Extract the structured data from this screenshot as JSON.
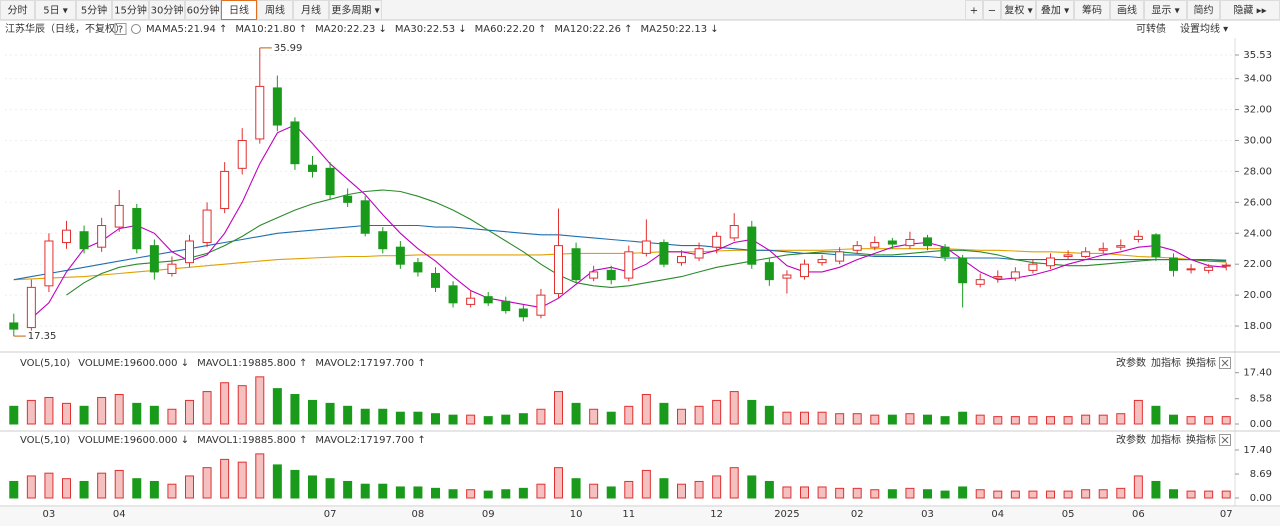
{
  "toolbar": {
    "left": [
      "分时",
      "5日 ▾",
      "5分钟",
      "15分钟",
      "30分钟",
      "60分钟",
      "日线",
      "周线",
      "月线",
      "更多周期 ▾"
    ],
    "active": 6,
    "right": [
      "+",
      "−",
      "复权 ▾",
      "叠加 ▾",
      "筹码",
      "画线",
      "显示 ▾",
      "简约",
      "隐藏 ▸▸"
    ]
  },
  "info": {
    "stock": "江苏华辰（日线，不复权）",
    "help": "?",
    "ma_label": "MA",
    "ma_items": [
      {
        "text": "MA5:21.94 ↑",
        "color": "#333333"
      },
      {
        "text": "MA10:21.80 ↑",
        "color": "#c000c0"
      },
      {
        "text": "MA20:22.23 ↓",
        "color": "#999999"
      },
      {
        "text": "MA30:22.53 ↓",
        "color": "#8b2222"
      },
      {
        "text": "MA60:22.20 ↑",
        "color": "#2a8a2a"
      },
      {
        "text": "MA120:22.26 ↑",
        "color": "#1f6fb0"
      },
      {
        "text": "MA250:22.13 ↓",
        "color": "#e0a000"
      }
    ],
    "right": [
      "可转债",
      "设置均线 ▾"
    ]
  },
  "panel_tools": [
    "改参数",
    "加指标",
    "换指标"
  ],
  "chart_data": [
    {
      "type": "candlestick",
      "up_color": "#e03030",
      "down_color": "#1a9a1a",
      "grid": true,
      "ylim": [
        16.45,
        36.5
      ],
      "yticks": [
        {
          "value": 18,
          "label": "18.00"
        },
        {
          "value": 20,
          "label": "20.00"
        },
        {
          "value": 22,
          "label": "22.00"
        },
        {
          "value": 24,
          "label": "24.00"
        },
        {
          "value": 26,
          "label": "26.00"
        },
        {
          "value": 28,
          "label": "28.00"
        },
        {
          "value": 30,
          "label": "30.00"
        },
        {
          "value": 32,
          "label": "32.00"
        },
        {
          "value": 34,
          "label": "34.00"
        },
        {
          "value": 35.53,
          "label": "35.53"
        }
      ],
      "categories": [
        null,
        null,
        "03",
        null,
        null,
        null,
        "04",
        null,
        null,
        null,
        null,
        null,
        null,
        null,
        null,
        null,
        null,
        null,
        "07",
        null,
        null,
        null,
        null,
        "08",
        null,
        null,
        null,
        "09",
        null,
        null,
        null,
        null,
        "10",
        null,
        null,
        "11",
        null,
        null,
        null,
        null,
        "12",
        null,
        null,
        null,
        "2025",
        null,
        null,
        null,
        "02",
        null,
        null,
        null,
        "03",
        null,
        null,
        null,
        "04",
        null,
        null,
        null,
        "05",
        null,
        null,
        null,
        "06",
        null,
        null,
        null,
        null,
        "07"
      ],
      "open": [
        18.2,
        17.9,
        20.6,
        23.4,
        24.1,
        23.1,
        24.4,
        25.6,
        23.2,
        21.4,
        22.1,
        23.4,
        25.6,
        28.2,
        30.1,
        33.4,
        31.2,
        28.4,
        28.2,
        26.4,
        26.1,
        24.1,
        23.1,
        22.1,
        21.4,
        20.6,
        19.4,
        19.9,
        19.6,
        19.1,
        18.7,
        20.1,
        23.0,
        21.1,
        21.6,
        21.1,
        22.7,
        23.4,
        22.1,
        22.4,
        23.1,
        23.7,
        24.4,
        22.1,
        21.1,
        21.2,
        22.1,
        22.2,
        22.9,
        23.1,
        23.5,
        23.2,
        23.7,
        23.1,
        22.4,
        20.7,
        21.1,
        21.1,
        21.6,
        21.9,
        22.5,
        22.5,
        22.9,
        23.1,
        23.6,
        23.9,
        22.4,
        21.7,
        21.6,
        21.9
      ],
      "high": [
        18.8,
        21.0,
        24.0,
        24.8,
        24.5,
        25.0,
        26.8,
        25.9,
        23.6,
        22.5,
        23.9,
        26.0,
        28.6,
        30.8,
        35.99,
        34.2,
        31.5,
        29.0,
        28.6,
        26.9,
        26.4,
        24.4,
        23.5,
        22.4,
        21.8,
        20.9,
        20.3,
        20.2,
        19.9,
        19.4,
        20.4,
        25.6,
        23.4,
        21.9,
        21.9,
        23.2,
        24.9,
        23.6,
        22.9,
        23.4,
        24.1,
        25.3,
        24.8,
        22.4,
        21.6,
        22.3,
        22.6,
        23.1,
        23.5,
        23.8,
        23.7,
        24.1,
        23.9,
        23.3,
        22.6,
        21.4,
        21.6,
        21.8,
        22.3,
        22.7,
        22.9,
        23.1,
        23.4,
        23.6,
        24.2,
        24.0,
        22.7,
        22.0,
        22.0,
        22.1
      ],
      "low": [
        17.35,
        17.7,
        20.2,
        23.0,
        22.7,
        22.8,
        24.1,
        22.7,
        21.0,
        21.2,
        21.8,
        23.1,
        25.3,
        27.8,
        29.8,
        30.6,
        28.1,
        27.6,
        26.2,
        25.7,
        23.8,
        22.7,
        21.7,
        21.2,
        20.2,
        19.2,
        19.2,
        19.3,
        18.8,
        18.3,
        18.5,
        19.8,
        20.8,
        20.9,
        20.7,
        20.9,
        22.5,
        21.8,
        21.9,
        22.2,
        22.7,
        23.5,
        21.7,
        20.6,
        20.1,
        21.0,
        21.9,
        22.0,
        22.7,
        22.9,
        23.0,
        23.0,
        22.9,
        22.2,
        19.2,
        20.5,
        20.8,
        20.9,
        21.4,
        21.7,
        22.3,
        22.4,
        22.7,
        22.9,
        23.4,
        22.2,
        21.2,
        21.4,
        21.4,
        21.6
      ],
      "close": [
        17.8,
        20.5,
        23.5,
        24.2,
        23.0,
        24.5,
        25.8,
        23.0,
        21.5,
        22.0,
        23.5,
        25.5,
        28.0,
        30.0,
        33.5,
        31.0,
        28.5,
        28.0,
        26.5,
        26.0,
        24.0,
        23.0,
        22.0,
        21.5,
        20.5,
        19.5,
        19.8,
        19.5,
        19.0,
        18.6,
        20.0,
        23.2,
        21.0,
        21.5,
        21.0,
        22.8,
        23.5,
        22.0,
        22.5,
        23.0,
        23.8,
        24.5,
        22.0,
        21.0,
        21.3,
        22.0,
        22.3,
        22.8,
        23.2,
        23.4,
        23.3,
        23.6,
        23.2,
        22.5,
        20.8,
        21.0,
        21.2,
        21.5,
        22.0,
        22.4,
        22.6,
        22.8,
        23.0,
        23.2,
        23.8,
        22.5,
        21.6,
        21.7,
        21.8,
        21.94
      ],
      "series": [
        {
          "color": "#e0a000",
          "values": [
            21.0,
            21.05,
            21.1,
            21.15,
            21.2,
            21.3,
            21.4,
            21.5,
            21.6,
            21.7,
            21.8,
            21.9,
            22.0,
            22.1,
            22.2,
            22.3,
            22.35,
            22.4,
            22.45,
            22.5,
            22.5,
            22.55,
            22.55,
            22.6,
            22.6,
            22.6,
            22.6,
            22.6,
            22.6,
            22.6,
            22.6,
            22.65,
            22.7,
            22.7,
            22.7,
            22.7,
            22.75,
            22.8,
            22.8,
            22.8,
            22.85,
            22.9,
            22.9,
            22.9,
            22.9,
            22.9,
            22.9,
            22.95,
            23.0,
            23.0,
            23.0,
            23.0,
            23.0,
            23.0,
            22.95,
            22.9,
            22.9,
            22.85,
            22.8,
            22.8,
            22.75,
            22.7,
            22.7,
            22.6,
            22.5,
            22.45,
            22.4,
            22.3,
            22.2,
            22.13
          ]
        },
        {
          "color": "#1f6fb0",
          "values": [
            21.0,
            21.2,
            21.4,
            21.6,
            21.8,
            22.0,
            22.2,
            22.4,
            22.6,
            22.8,
            23.0,
            23.2,
            23.4,
            23.6,
            23.8,
            24.0,
            24.1,
            24.2,
            24.3,
            24.4,
            24.5,
            24.5,
            24.5,
            24.5,
            24.4,
            24.4,
            24.3,
            24.2,
            24.1,
            24.0,
            23.9,
            23.9,
            23.8,
            23.7,
            23.6,
            23.5,
            23.4,
            23.3,
            23.2,
            23.2,
            23.1,
            23.0,
            22.9,
            22.9,
            22.8,
            22.7,
            22.7,
            22.6,
            22.6,
            22.5,
            22.5,
            22.5,
            22.5,
            22.4,
            22.4,
            22.4,
            22.4,
            22.3,
            22.3,
            22.3,
            22.3,
            22.3,
            22.3,
            22.3,
            22.3,
            22.3,
            22.3,
            22.3,
            22.3,
            22.26
          ]
        },
        {
          "color": "#2a8a2a",
          "values": [
            null,
            null,
            null,
            20.0,
            20.8,
            21.4,
            21.8,
            22.0,
            22.1,
            22.2,
            22.4,
            22.7,
            23.2,
            23.8,
            24.5,
            25.0,
            25.5,
            25.9,
            26.2,
            26.5,
            26.7,
            26.8,
            26.7,
            26.4,
            26.0,
            25.5,
            24.9,
            24.2,
            23.5,
            22.8,
            22.0,
            21.3,
            20.8,
            20.6,
            20.5,
            20.6,
            20.8,
            21.0,
            21.2,
            21.5,
            21.8,
            22.0,
            22.2,
            22.4,
            22.6,
            22.7,
            22.8,
            22.8,
            22.7,
            22.6,
            22.6,
            22.7,
            22.8,
            22.9,
            22.9,
            22.8,
            22.6,
            22.3,
            22.1,
            22.0,
            21.9,
            21.9,
            22.0,
            22.1,
            22.2,
            22.3,
            22.3,
            22.3,
            22.2,
            22.2
          ]
        },
        {
          "color": "#c000c0",
          "values": [
            null,
            18.5,
            19.5,
            21.5,
            23.0,
            23.5,
            24.3,
            24.5,
            24.0,
            22.8,
            22.2,
            22.6,
            24.0,
            26.0,
            28.5,
            30.5,
            31.0,
            29.8,
            28.5,
            27.5,
            26.5,
            25.2,
            24.0,
            23.0,
            22.2,
            21.2,
            20.3,
            19.8,
            19.6,
            19.4,
            19.2,
            19.8,
            20.7,
            21.6,
            21.8,
            21.5,
            22.0,
            22.8,
            22.8,
            22.6,
            22.9,
            23.4,
            23.6,
            22.9,
            21.9,
            21.5,
            21.5,
            21.8,
            22.3,
            22.7,
            23.1,
            23.3,
            23.4,
            23.1,
            22.3,
            21.5,
            21.0,
            21.1,
            21.3,
            21.6,
            22.0,
            22.3,
            22.6,
            22.8,
            23.1,
            23.2,
            22.9,
            22.3,
            21.9,
            21.8
          ]
        }
      ]
    },
    {
      "type": "bar",
      "header": [
        {
          "text": "VOL(5,10)",
          "color": "#333333"
        },
        {
          "text": "VOLUME:19600.000 ↓",
          "color": "#000080"
        },
        {
          "text": "MAVOL1:19885.800 ↑",
          "color": "#c000c0"
        },
        {
          "text": "MAVOL2:17197.700 ↑",
          "color": "#555555"
        }
      ],
      "ylim": [
        0,
        19
      ],
      "yticks": [
        {
          "value": 0,
          "label": "0.00"
        },
        {
          "value": 8.58,
          "label": "8.58"
        },
        {
          "value": 17.4,
          "label": "17.40"
        }
      ],
      "values": [
        6,
        8,
        9,
        7,
        6,
        9,
        10,
        7,
        6,
        5,
        8,
        11,
        14,
        13,
        16,
        12,
        10,
        8,
        7,
        6,
        5,
        5,
        4,
        4,
        3.5,
        3,
        3,
        2.5,
        3,
        3.5,
        5,
        11,
        7,
        5,
        4,
        6,
        10,
        7,
        5,
        6,
        8,
        11,
        8,
        6,
        4,
        4,
        4,
        3.5,
        3.5,
        3,
        3,
        3.5,
        3,
        2.5,
        4,
        3,
        2.5,
        2.5,
        2.5,
        2.5,
        2.5,
        3,
        3,
        3.5,
        8,
        6,
        3,
        2.5,
        2.5,
        2.5
      ]
    },
    {
      "type": "bar",
      "header": [
        {
          "text": "VOL(5,10)",
          "color": "#333333"
        },
        {
          "text": "VOLUME:19600.000 ↓",
          "color": "#000080"
        },
        {
          "text": "MAVOL1:19885.800 ↑",
          "color": "#c000c0"
        },
        {
          "text": "MAVOL2:17197.700 ↑",
          "color": "#555555"
        }
      ],
      "ylim": [
        0,
        19
      ],
      "yticks": [
        {
          "value": 0,
          "label": "0.00"
        },
        {
          "value": 8.69,
          "label": "8.69"
        },
        {
          "value": 17.4,
          "label": "17.40"
        }
      ],
      "values": [
        6,
        8,
        9,
        7,
        6,
        9,
        10,
        7,
        6,
        5,
        8,
        11,
        14,
        13,
        16,
        12,
        10,
        8,
        7,
        6,
        5,
        5,
        4,
        4,
        3.5,
        3,
        3,
        2.5,
        3,
        3.5,
        5,
        11,
        7,
        5,
        4,
        6,
        10,
        7,
        5,
        6,
        8,
        11,
        8,
        6,
        4,
        4,
        4,
        3.5,
        3.5,
        3,
        3,
        3.5,
        3,
        2.5,
        4,
        3,
        2.5,
        2.5,
        2.5,
        2.5,
        2.5,
        3,
        3,
        3.5,
        8,
        6,
        3,
        2.5,
        2.5,
        2.5
      ]
    }
  ]
}
